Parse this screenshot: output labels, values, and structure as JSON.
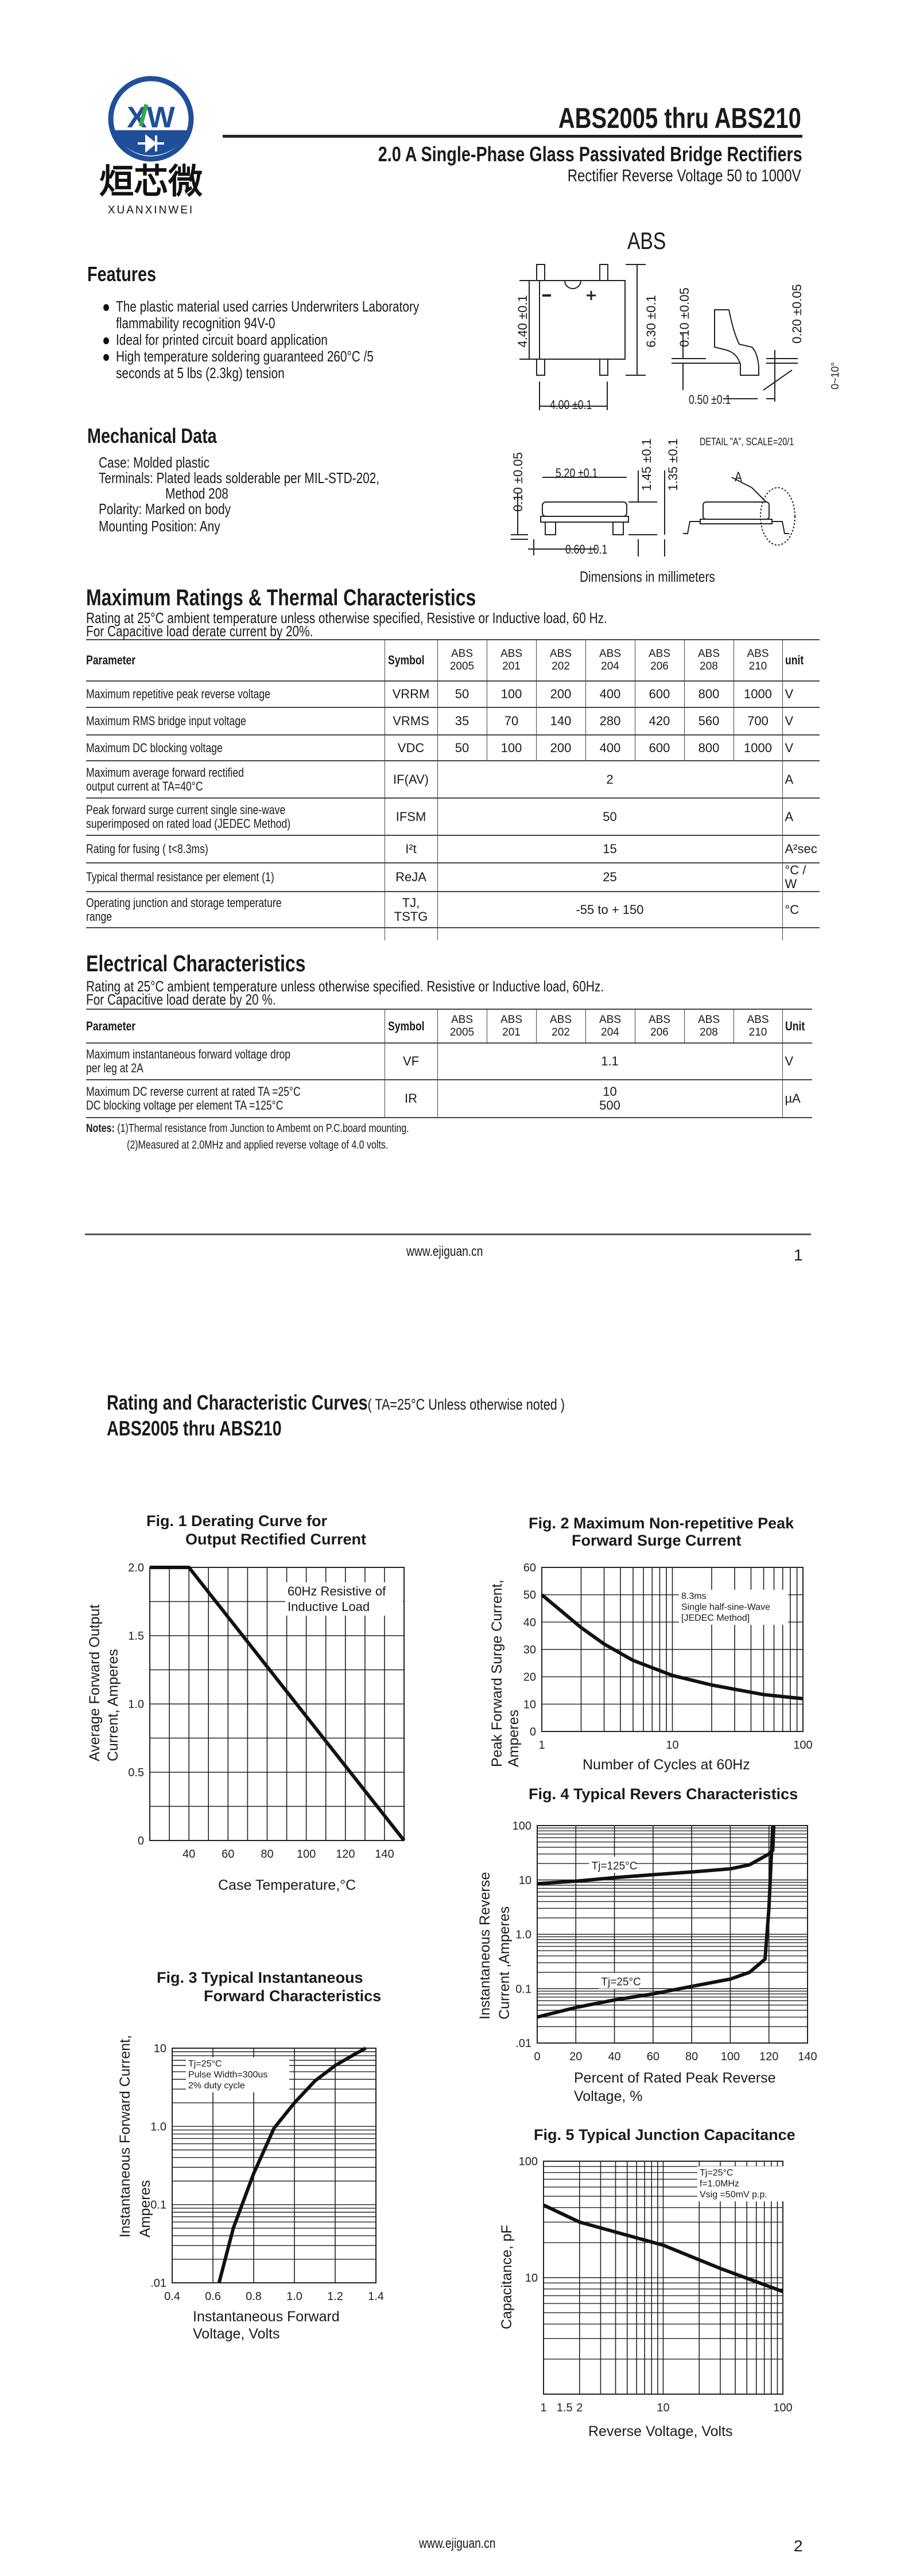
{
  "logo": {
    "mark": "XW",
    "chinese": "烜芯微",
    "brand": "XUANXINWEI",
    "colors": {
      "ring": "#1f4f99",
      "x": "#1f4f99",
      "slash": "#3aa845"
    }
  },
  "header": {
    "title": "ABS2005  thru  ABS210",
    "subtitle": "2.0  A Single-Phase Glass Passivated Bridge Rectifiers",
    "subtitle2": "Rectifier Reverse Voltage 50 to 1000V"
  },
  "package": {
    "name": "ABS",
    "top_view": {
      "minus": "-",
      "plus": "+",
      "dims": [
        "4.40 ±0.1",
        "6.30 ±0.1",
        "0.10 ±0.05",
        "0.20 ±0.05",
        "4.00 ±0.1",
        "0.50 ±0.1",
        "0~10°"
      ]
    },
    "side_view": {
      "detail": "DETAIL \"A\", SCALE=20/1",
      "detail_label": "A",
      "dims": [
        "0.10 ±0.05",
        "5.20 ±0.1",
        "1.45 ±0.1",
        "1.35 ±0.1",
        "0.60 ±0.1"
      ]
    },
    "units_note": "Dimensions in millimeters"
  },
  "features": {
    "heading": "Features",
    "items": [
      [
        "The plastic material used carries Underwriters Laboratory",
        "flammability recognition 94V-0"
      ],
      [
        "Ideal for printed circuit board application"
      ],
      [
        "High temperature soldering guaranteed 260°C /5",
        "seconds at 5 lbs (2.3kg) tension"
      ]
    ]
  },
  "mechanical": {
    "heading": "Mechanical Data",
    "lines": [
      "Case: Molded plastic",
      "Terminals: Plated leads solderable per MIL-STD-202,",
      "Method 208",
      "Polarity: Marked on body",
      "Mounting Position: Any"
    ]
  },
  "max_ratings": {
    "heading": "Maximum Ratings & Thermal Characteristics",
    "notes": [
      "Rating at 25°C ambient temperature unless otherwise specified, Resistive or Inductive load, 60 Hz.",
      "For Capacitive load derate current by 20%."
    ],
    "columns": {
      "parameter": "Parameter",
      "symbol": "Symbol",
      "unit": "unit",
      "models": [
        [
          "ABS",
          "2005"
        ],
        [
          "ABS",
          "201"
        ],
        [
          "ABS",
          "202"
        ],
        [
          "ABS",
          "204"
        ],
        [
          "ABS",
          "206"
        ],
        [
          "ABS",
          "208"
        ],
        [
          "ABS",
          "210"
        ]
      ]
    },
    "rows": [
      {
        "parameter": [
          "Maximum repetitive peak reverse voltage"
        ],
        "symbol": [
          "VRRM"
        ],
        "values": [
          "50",
          "100",
          "200",
          "400",
          "600",
          "800",
          "1000"
        ],
        "unit": "V"
      },
      {
        "parameter": [
          "Maximum RMS bridge input voltage"
        ],
        "symbol": [
          "VRMS"
        ],
        "values": [
          "35",
          "70",
          "140",
          "280",
          "420",
          "560",
          "700"
        ],
        "unit": "V"
      },
      {
        "parameter": [
          "Maximum DC blocking voltage"
        ],
        "symbol": [
          "VDC"
        ],
        "values": [
          "50",
          "100",
          "200",
          "400",
          "600",
          "800",
          "1000"
        ],
        "unit": "V"
      },
      {
        "parameter": [
          "Maximum average forward rectified",
          "output current at TA=40°C"
        ],
        "symbol": [
          "IF(AV)"
        ],
        "value": [
          "2"
        ],
        "unit": "A"
      },
      {
        "parameter": [
          "Peak forward surge current single sine-wave",
          "superimposed on rated load (JEDEC Method)"
        ],
        "symbol": [
          "IFSM"
        ],
        "value": [
          "50"
        ],
        "unit": "A"
      },
      {
        "parameter": [
          "Rating for fusing ( t<8.3ms)"
        ],
        "symbol": [
          "I²t"
        ],
        "value": [
          "15"
        ],
        "unit": "A²sec"
      },
      {
        "parameter": [
          "Typical  thermal resistance per element (1)"
        ],
        "symbol": [
          "ReJA"
        ],
        "value": [
          "25"
        ],
        "unit": "°C / W"
      },
      {
        "parameter": [
          "Operating junction and storage temperature",
          "range"
        ],
        "symbol": [
          "TJ,",
          "TSTG"
        ],
        "value": [
          "-55 to + 150"
        ],
        "unit": "°C"
      }
    ]
  },
  "electrical": {
    "heading": "Electrical Characteristics",
    "notes": [
      "Rating at 25°C ambient temperature unless otherwise specified. Resistive or Inductive load, 60Hz.",
      "For Capacitive load derate by 20 %."
    ],
    "columns": {
      "parameter": "Parameter",
      "symbol": "Symbol",
      "unit": "Unit",
      "models": [
        [
          "ABS",
          "2005"
        ],
        [
          "ABS",
          "201"
        ],
        [
          "ABS",
          "202"
        ],
        [
          "ABS",
          "204"
        ],
        [
          "ABS",
          "206"
        ],
        [
          "ABS",
          "208"
        ],
        [
          "ABS",
          "210"
        ]
      ]
    },
    "rows": [
      {
        "parameter": [
          "Maximum instantaneous forward voltage drop",
          "per leg at 2A"
        ],
        "symbol": [
          "VF"
        ],
        "value": [
          "1.1"
        ],
        "unit": "V"
      },
      {
        "parameter": [
          "Maximum DC reverse current at rated  TA =25°C",
          "DC blocking voltage per element        TA =125°C"
        ],
        "symbol": [
          "IR"
        ],
        "value": [
          "10",
          "500"
        ],
        "unit": "µA"
      }
    ],
    "footnotes": {
      "label": "Notes:",
      "items": [
        "(1)Thermal resistance from Junction to Ambemt on P.C.board mounting.",
        "(2)Measured at 2.0MHz and applied reverse voltage of 4.0 volts."
      ]
    }
  },
  "footer1": {
    "url": "www.ejiguan.cn",
    "page": "1"
  },
  "page2": {
    "heading": "Rating and Characteristic Curves",
    "heading_note": "( TA=25°C Unless otherwise noted )",
    "subheading": "ABS2005 thru ABS210"
  },
  "footer2": {
    "url": "www.ejiguan.cn",
    "page": "2"
  },
  "chart_data": [
    {
      "type": "line",
      "title": [
        "Fig. 1 Derating Curve for",
        "Output Rectified Current"
      ],
      "xlabel": "Case Temperature,°C",
      "ylabel": [
        "Average Forward Output",
        "Current, Amperes"
      ],
      "xscale": "linear",
      "yscale": "linear",
      "xlim": [
        20,
        150
      ],
      "ylim": [
        0,
        2.0
      ],
      "grid": true,
      "xticks": [
        "40",
        "60",
        "80",
        "100",
        "120",
        "140"
      ],
      "yticks": [
        "0",
        "0.5",
        "1.0",
        "1.5",
        "2.0"
      ],
      "annotation": [
        "60Hz Resistive of",
        "Inductive Load"
      ],
      "series": [
        {
          "x": [
            20,
            40,
            150
          ],
          "y": [
            2.0,
            2.0,
            0
          ]
        }
      ]
    },
    {
      "type": "line",
      "title": [
        "Fig. 2 Maximum Non-repetitive Peak",
        "Forward Surge Current"
      ],
      "xlabel": "Number of Cycles at 60Hz",
      "ylabel": [
        "Peak Forward Surge Current,",
        "Amperes"
      ],
      "xscale": "log",
      "yscale": "linear",
      "xlim": [
        1,
        100
      ],
      "ylim": [
        0,
        60
      ],
      "grid": true,
      "xticks": [
        "1",
        "10",
        "100"
      ],
      "yticks": [
        "0",
        "10",
        "20",
        "30",
        "40",
        "50",
        "60"
      ],
      "annotation": [
        "8.3ms",
        "Single half-sine-Wave",
        "[JEDEC Method]"
      ],
      "series": [
        {
          "x": [
            1,
            2,
            3,
            5,
            10,
            20,
            50,
            100
          ],
          "y": [
            50,
            38,
            32,
            26,
            20.5,
            17,
            13.5,
            12
          ]
        }
      ]
    },
    {
      "type": "line",
      "title": [
        "Fig. 4 Typical Revers Characteristics"
      ],
      "xlabel": [
        "Percent of Rated Peak Reverse",
        "Voltage, %"
      ],
      "ylabel": [
        "Instantaneous Reverse",
        "Current ,Amperes"
      ],
      "xscale": "linear",
      "yscale": "log",
      "xlim": [
        0,
        140
      ],
      "ylim": [
        0.01,
        100
      ],
      "grid": true,
      "xticks": [
        "0",
        "20",
        "40",
        "60",
        "80",
        "100",
        "120",
        "140"
      ],
      "yticks": [
        ".01",
        "0.1",
        "1.0",
        "10",
        "100"
      ],
      "series": [
        {
          "name": "Tj=125°C",
          "x": [
            0,
            20,
            40,
            60,
            80,
            100,
            110,
            120,
            122,
            122.5
          ],
          "y": [
            8.5,
            9.5,
            11,
            12.5,
            14,
            16,
            19,
            30,
            35,
            100
          ]
        },
        {
          "name": "Tj=25°C",
          "x": [
            0,
            20,
            40,
            60,
            80,
            100,
            110,
            118,
            120,
            122
          ],
          "y": [
            0.03,
            0.045,
            0.062,
            0.08,
            0.11,
            0.15,
            0.2,
            0.35,
            3,
            100
          ]
        }
      ]
    },
    {
      "type": "line",
      "title": [
        "Fig. 3 Typical Instantaneous",
        "Forward Characteristics"
      ],
      "xlabel": [
        "Instantaneous Forward",
        "Voltage, Volts"
      ],
      "ylabel": [
        "Instantaneous Forward Current,",
        "Amperes"
      ],
      "xscale": "linear",
      "yscale": "log",
      "xlim": [
        0.4,
        1.4
      ],
      "ylim": [
        0.01,
        10
      ],
      "grid": true,
      "xticks": [
        "0.4",
        "0.6",
        "0.8",
        "1.0",
        "1.2",
        "1.4"
      ],
      "yticks": [
        ".01",
        "0.1",
        "1.0",
        "10"
      ],
      "annotation": [
        "Tj=25°C",
        "Pulse Width=300us",
        "2% duty cycle"
      ],
      "series": [
        {
          "x": [
            0.63,
            0.66,
            0.7,
            0.8,
            0.9,
            1.0,
            1.1,
            1.2,
            1.3,
            1.35
          ],
          "y": [
            0.01,
            0.02,
            0.05,
            0.25,
            0.95,
            2,
            3.8,
            6,
            8.5,
            10
          ]
        }
      ]
    },
    {
      "type": "line",
      "title": [
        "Fig. 5 Typical Junction Capacitance"
      ],
      "xlabel": "Reverse Voltage, Volts",
      "ylabel": [
        "Capacitance, pF"
      ],
      "xscale": "log",
      "yscale": "log",
      "xlim": [
        1,
        100
      ],
      "ylim": [
        1,
        100
      ],
      "grid": true,
      "xticks": [
        "1",
        "1.5",
        "2",
        "10",
        "100"
      ],
      "yticks": [
        "10",
        "100"
      ],
      "annotation": [
        "Tj=25°C",
        "f=1.0MHz",
        "Vsig =50mV p.p."
      ],
      "series": [
        {
          "x": [
            1,
            2,
            10,
            30,
            100
          ],
          "y": [
            42,
            30,
            19,
            12,
            7.6
          ]
        }
      ]
    }
  ]
}
